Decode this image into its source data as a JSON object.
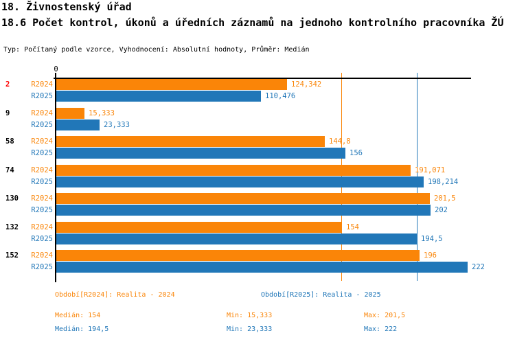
{
  "header": {
    "title": "18. Živnostenský úřad",
    "subtitle": "18.6 Počet kontrol, úkonů a úředních záznamů na jednoho kontrolního pracovníka ŽÚ",
    "meta": "Typ: Počítaný podle vzorce, Vyhodnocení: Absolutní hodnoty, Průměr: Medián"
  },
  "colors": {
    "r2024": "#FA8508",
    "r2025": "#2177B8",
    "highlight": "#FF0000",
    "axis": "#000000"
  },
  "chart_data": {
    "type": "bar",
    "orientation": "horizontal",
    "zero_label": "0",
    "xlim": [
      0,
      224
    ],
    "grid": false,
    "series": [
      {
        "key": "r2024",
        "name": "R2024",
        "color": "#FA8508"
      },
      {
        "key": "r2025",
        "name": "R2025",
        "color": "#2177B8"
      }
    ],
    "rows": [
      {
        "category": "2",
        "category_color": "#FF0000",
        "values": [
          124.342,
          110.476
        ],
        "value_labels": [
          "124,342",
          "110,476"
        ]
      },
      {
        "category": "9",
        "category_color": "#000000",
        "values": [
          15.333,
          23.333
        ],
        "value_labels": [
          "15,333",
          "23,333"
        ]
      },
      {
        "category": "58",
        "category_color": "#000000",
        "values": [
          144.8,
          156
        ],
        "value_labels": [
          "144,8",
          "156"
        ]
      },
      {
        "category": "74",
        "category_color": "#000000",
        "values": [
          191.071,
          198.214
        ],
        "value_labels": [
          "191,071",
          "198,214"
        ]
      },
      {
        "category": "130",
        "category_color": "#000000",
        "values": [
          201.5,
          202
        ],
        "value_labels": [
          "201,5",
          "202"
        ]
      },
      {
        "category": "132",
        "category_color": "#000000",
        "values": [
          154,
          194.5
        ],
        "value_labels": [
          "154",
          "194,5"
        ]
      },
      {
        "category": "152",
        "category_color": "#000000",
        "values": [
          196,
          222
        ],
        "value_labels": [
          "196",
          "222"
        ]
      }
    ],
    "reference_lines": [
      {
        "name": "median-r2024",
        "value": 154,
        "color": "#FA8508"
      },
      {
        "name": "median-r2025",
        "value": 194.5,
        "color": "#2177B8"
      }
    ],
    "summary": {
      "r2024": {
        "median": 154,
        "min": 15.333,
        "max": 201.5
      },
      "r2025": {
        "median": 194.5,
        "min": 23.333,
        "max": 222
      }
    }
  },
  "legend": {
    "r2024": "Období[R2024]: Realita - 2024",
    "r2025": "Období[R2025]: Realita - 2025"
  },
  "stats": {
    "r2024": {
      "median": "Medián: 154",
      "min": "Min: 15,333",
      "max": "Max: 201,5"
    },
    "r2025": {
      "median": "Medián: 194,5",
      "min": "Min: 23,333",
      "max": "Max: 222"
    }
  }
}
